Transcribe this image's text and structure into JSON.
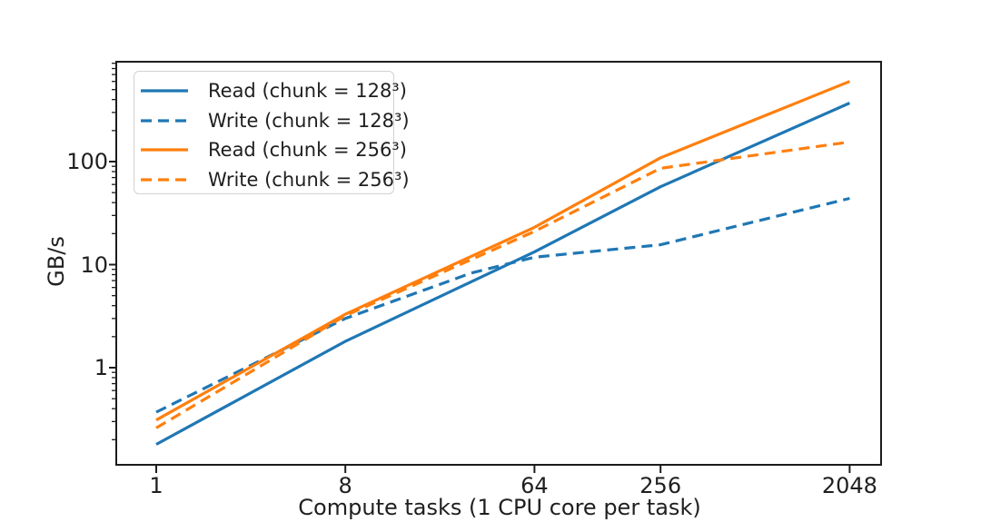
{
  "chart_data": {
    "type": "line",
    "title": "",
    "xlabel": "Compute tasks (1 CPU core per task)",
    "ylabel": "GB/s",
    "x_scale": "log2",
    "y_scale": "log10",
    "xlim": [
      0.66,
      2900
    ],
    "ylim": [
      0.114,
      930
    ],
    "grid": false,
    "legend_position": "upper-left",
    "x_ticks": [
      "1",
      "8",
      "64",
      "256",
      "2048"
    ],
    "y_ticks": [
      "1",
      "10",
      "100"
    ],
    "series": [
      {
        "name": "Read (chunk = 128³)",
        "line_style": "solid",
        "color": "#1f77b4",
        "points": [
          [
            1,
            0.18
          ],
          [
            8,
            1.8
          ],
          [
            64,
            13.3
          ],
          [
            256,
            57
          ],
          [
            2048,
            370
          ]
        ]
      },
      {
        "name": "Write (chunk = 128³)",
        "line_style": "dashed",
        "color": "#1f77b4",
        "points": [
          [
            1,
            0.37
          ],
          [
            8,
            3.0
          ],
          [
            32,
            8.3
          ],
          [
            64,
            11.8
          ],
          [
            256,
            15.6
          ],
          [
            2048,
            44
          ]
        ]
      },
      {
        "name": "Read (chunk = 256³)",
        "line_style": "solid",
        "color": "#ff7f0e",
        "points": [
          [
            1,
            0.31
          ],
          [
            8,
            3.3
          ],
          [
            64,
            23
          ],
          [
            256,
            109
          ],
          [
            2048,
            600
          ]
        ]
      },
      {
        "name": "Write (chunk = 256³)",
        "line_style": "dashed",
        "color": "#ff7f0e",
        "points": [
          [
            1,
            0.26
          ],
          [
            8,
            3.2
          ],
          [
            64,
            21
          ],
          [
            256,
            86
          ],
          [
            2048,
            155
          ]
        ]
      }
    ]
  }
}
